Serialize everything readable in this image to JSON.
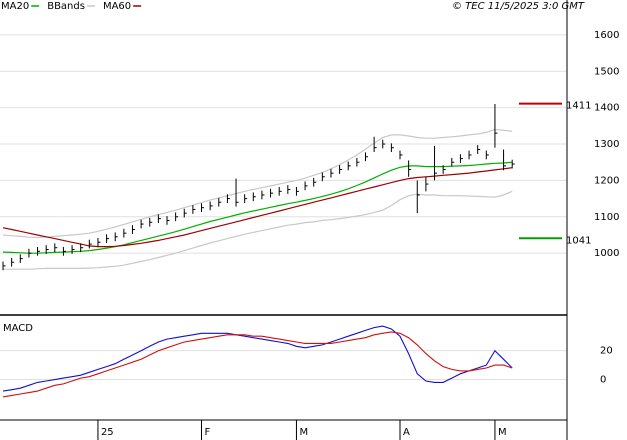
{
  "chart_data": {
    "type": "ohlc",
    "credit": "© TEC 11/5/2025 3:0 GMT",
    "ylim": [
      830,
      1696
    ],
    "yticks": [
      1000,
      1100,
      1200,
      1300,
      1400,
      1500,
      1600
    ],
    "xlim": [
      -0.35,
      65.35
    ],
    "xticks": [
      {
        "value": 11,
        "label": "25"
      },
      {
        "value": 23,
        "label": "F"
      },
      {
        "value": 34,
        "label": "M"
      },
      {
        "value": 46,
        "label": "A"
      },
      {
        "value": 57,
        "label": "M"
      }
    ],
    "close": [
      965,
      975,
      985,
      1000,
      1005,
      1010,
      1015,
      1005,
      1010,
      1015,
      1025,
      1030,
      1040,
      1045,
      1055,
      1065,
      1080,
      1085,
      1095,
      1090,
      1100,
      1110,
      1120,
      1125,
      1130,
      1140,
      1150,
      1140,
      1150,
      1155,
      1160,
      1165,
      1170,
      1175,
      1170,
      1185,
      1195,
      1210,
      1220,
      1230,
      1240,
      1250,
      1265,
      1290,
      1300,
      1290,
      1270,
      1230,
      1160,
      1190,
      1220,
      1230,
      1250,
      1260,
      1270,
      1285,
      1270,
      1330,
      1240,
      1245
    ],
    "high": [
      977,
      987,
      997,
      1012,
      1017,
      1022,
      1027,
      1017,
      1022,
      1027,
      1037,
      1042,
      1052,
      1057,
      1067,
      1077,
      1092,
      1097,
      1107,
      1102,
      1112,
      1122,
      1132,
      1137,
      1142,
      1152,
      1162,
      1205,
      1162,
      1167,
      1172,
      1177,
      1182,
      1187,
      1182,
      1197,
      1207,
      1222,
      1232,
      1242,
      1252,
      1262,
      1277,
      1320,
      1312,
      1302,
      1282,
      1255,
      1200,
      1210,
      1295,
      1242,
      1262,
      1272,
      1282,
      1297,
      1282,
      1410,
      1285,
      1257
    ],
    "low": [
      953,
      963,
      973,
      988,
      993,
      998,
      1003,
      993,
      998,
      1003,
      1013,
      1018,
      1028,
      1033,
      1043,
      1053,
      1068,
      1073,
      1083,
      1078,
      1088,
      1098,
      1108,
      1113,
      1118,
      1128,
      1138,
      1128,
      1138,
      1143,
      1148,
      1153,
      1158,
      1163,
      1158,
      1173,
      1183,
      1198,
      1208,
      1218,
      1228,
      1238,
      1253,
      1278,
      1288,
      1278,
      1258,
      1210,
      1110,
      1170,
      1200,
      1218,
      1238,
      1248,
      1258,
      1273,
      1258,
      1290,
      1228,
      1233
    ],
    "bar_color": "#000000",
    "series": [
      {
        "name": "MA20",
        "color": "#00b000",
        "values": [
          1003,
          1002,
          1001,
          1000,
          1000,
          1001,
          1002,
          1003,
          1004,
          1005,
          1007,
          1010,
          1014,
          1018,
          1023,
          1029,
          1035,
          1041,
          1047,
          1053,
          1059,
          1066,
          1073,
          1080,
          1087,
          1093,
          1099,
          1105,
          1111,
          1116,
          1121,
          1126,
          1131,
          1136,
          1140,
          1145,
          1150,
          1156,
          1162,
          1169,
          1177,
          1186,
          1196,
          1207,
          1218,
          1228,
          1236,
          1240,
          1240,
          1238,
          1238,
          1238,
          1239,
          1240,
          1241,
          1243,
          1245,
          1247,
          1248,
          1250
        ]
      },
      {
        "name": "BBands",
        "color": "#c8c8c8",
        "values": [
          1050,
          1048,
          1046,
          1044,
          1043,
          1044,
          1046,
          1048,
          1050,
          1052,
          1055,
          1060,
          1066,
          1072,
          1079,
          1086,
          1093,
          1100,
          1106,
          1112,
          1118,
          1125,
          1132,
          1139,
          1146,
          1152,
          1158,
          1164,
          1170,
          1175,
          1180,
          1185,
          1190,
          1195,
          1200,
          1206,
          1214,
          1222,
          1232,
          1243,
          1256,
          1270,
          1286,
          1302,
          1318,
          1325,
          1325,
          1322,
          1318,
          1316,
          1316,
          1318,
          1320,
          1322,
          1325,
          1328,
          1332,
          1340,
          1338,
          1335
        ],
        "lower": [
          956,
          956,
          956,
          956,
          957,
          958,
          958,
          958,
          958,
          958,
          959,
          960,
          962,
          964,
          967,
          972,
          977,
          982,
          988,
          994,
          1000,
          1007,
          1014,
          1021,
          1028,
          1034,
          1040,
          1046,
          1052,
          1057,
          1062,
          1067,
          1072,
          1077,
          1080,
          1084,
          1086,
          1090,
          1092,
          1095,
          1098,
          1102,
          1106,
          1112,
          1118,
          1131,
          1147,
          1158,
          1162,
          1160,
          1160,
          1158,
          1158,
          1158,
          1157,
          1156,
          1155,
          1154,
          1160,
          1170
        ]
      },
      {
        "name": "MA60",
        "color": "#a00000",
        "values": [
          1070,
          1065,
          1060,
          1055,
          1050,
          1045,
          1040,
          1035,
          1030,
          1025,
          1020,
          1018,
          1018,
          1019,
          1021,
          1024,
          1027,
          1031,
          1035,
          1040,
          1045,
          1050,
          1056,
          1062,
          1068,
          1074,
          1080,
          1086,
          1092,
          1098,
          1104,
          1110,
          1116,
          1122,
          1128,
          1134,
          1140,
          1146,
          1152,
          1158,
          1164,
          1170,
          1176,
          1182,
          1188,
          1194,
          1200,
          1205,
          1208,
          1210,
          1212,
          1214,
          1216,
          1218,
          1220,
          1223,
          1226,
          1229,
          1232,
          1235
        ]
      }
    ],
    "annotations": [
      {
        "text": "1411",
        "value": 1411,
        "color": "#c00000"
      },
      {
        "text": "1041",
        "value": 1041,
        "color": "#00a000"
      }
    ],
    "macd": {
      "title": "MACD",
      "ylim": [
        -28,
        44
      ],
      "yticks": [
        0,
        20
      ],
      "series": [
        {
          "color": "#1010d0",
          "values": [
            -8,
            -7,
            -6,
            -4,
            -2,
            -1,
            0,
            1,
            2,
            3,
            5,
            7,
            9,
            11,
            14,
            17,
            20,
            23,
            26,
            28,
            29,
            30,
            31,
            32,
            32,
            32,
            32,
            31,
            30,
            29,
            28,
            27,
            26,
            25,
            23,
            22,
            23,
            24,
            26,
            28,
            30,
            32,
            34,
            36,
            37,
            35,
            30,
            18,
            4,
            -1,
            -2,
            -2,
            1,
            4,
            6,
            8,
            10,
            20,
            14,
            8
          ]
        },
        {
          "color": "#d01010",
          "values": [
            -12,
            -11,
            -10,
            -9,
            -8,
            -6,
            -4,
            -3,
            -1,
            1,
            2,
            4,
            6,
            8,
            10,
            12,
            14,
            17,
            20,
            22,
            24,
            26,
            27,
            28,
            29,
            30,
            31,
            31,
            31,
            30,
            30,
            29,
            28,
            27,
            26,
            25,
            25,
            25,
            25,
            26,
            27,
            28,
            29,
            31,
            32,
            33,
            32,
            29,
            24,
            18,
            13,
            9,
            7,
            6,
            6,
            7,
            8,
            10,
            10,
            8
          ]
        }
      ]
    }
  }
}
